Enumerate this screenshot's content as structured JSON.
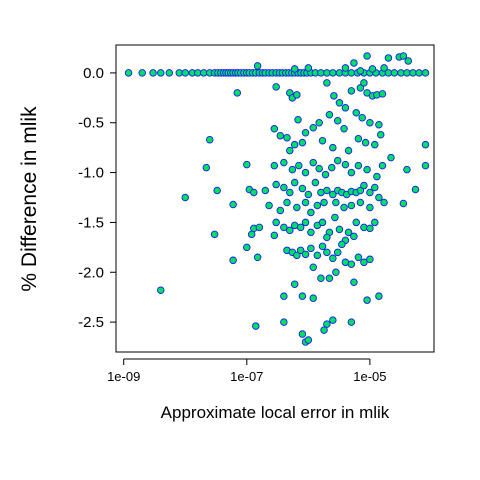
{
  "chart_data": {
    "type": "scatter",
    "title": "",
    "xlabel": "Approximate local error in mlik",
    "ylabel": "% Difference in mlik",
    "x_scale": "log10",
    "xlim": [
      7.5e-10,
      0.00011
    ],
    "ylim": [
      -2.8,
      0.28
    ],
    "x_ticks": [
      1e-09,
      1e-07,
      1e-05
    ],
    "x_tick_labels": [
      "1e-09",
      "1e-07",
      "1e-05"
    ],
    "y_ticks": [
      0.0,
      -0.5,
      -1.0,
      -1.5,
      -2.0,
      -2.5
    ],
    "y_tick_labels": [
      "0.0",
      "-0.5",
      "-1.0",
      "-1.5",
      "-2.0",
      "-2.5"
    ],
    "grid": false,
    "legend": "none",
    "colors": {
      "marker_fill": "#00e060",
      "marker_edge": "#1a1aff",
      "axis": "#000000"
    },
    "series": [
      {
        "points": [
          [
            1.2e-09,
            0.0
          ],
          [
            2e-09,
            0.0
          ],
          [
            3e-09,
            0.0
          ],
          [
            4e-09,
            0.0
          ],
          [
            5.5e-09,
            0.0
          ],
          [
            8e-09,
            0.0
          ],
          [
            1e-08,
            0.0
          ],
          [
            1.3e-08,
            0.0
          ],
          [
            1.6e-08,
            0.0
          ],
          [
            2e-08,
            0.0
          ],
          [
            2.5e-08,
            0.0
          ],
          [
            3e-08,
            0.0
          ],
          [
            3.4e-08,
            0.0
          ],
          [
            3.8e-08,
            0.0
          ],
          [
            4.2e-08,
            0.0
          ],
          [
            4.6e-08,
            0.0
          ],
          [
            5e-08,
            0.0
          ],
          [
            5.5e-08,
            0.0
          ],
          [
            6e-08,
            0.0
          ],
          [
            6.6e-08,
            0.0
          ],
          [
            7.2e-08,
            0.0
          ],
          [
            8e-08,
            0.0
          ],
          [
            9e-08,
            0.0
          ],
          [
            1e-07,
            0.0
          ],
          [
            1.1e-07,
            0.0
          ],
          [
            1.25e-07,
            0.0
          ],
          [
            1.4e-07,
            0.0
          ],
          [
            1.6e-07,
            0.0
          ],
          [
            1.8e-07,
            0.0
          ],
          [
            2e-07,
            0.0
          ],
          [
            2.3e-07,
            0.0
          ],
          [
            2.6e-07,
            0.0
          ],
          [
            3e-07,
            0.0
          ],
          [
            3.4e-07,
            0.0
          ],
          [
            3.8e-07,
            0.0
          ],
          [
            4.3e-07,
            0.0
          ],
          [
            4.8e-07,
            0.0
          ],
          [
            5.4e-07,
            0.0
          ],
          [
            6e-07,
            0.0
          ],
          [
            6.8e-07,
            0.0
          ],
          [
            7.6e-07,
            0.0
          ],
          [
            8.5e-07,
            0.0
          ],
          [
            9.5e-07,
            0.0
          ],
          [
            1.1e-06,
            0.0
          ],
          [
            1.3e-06,
            0.0
          ],
          [
            1.6e-06,
            0.0
          ],
          [
            2e-06,
            0.0
          ],
          [
            2.5e-06,
            0.0
          ],
          [
            3.2e-06,
            0.0
          ],
          [
            4e-06,
            0.0
          ],
          [
            5e-06,
            0.0
          ],
          [
            6.3e-06,
            0.0
          ],
          [
            8e-06,
            0.0
          ],
          [
            1e-05,
            0.0
          ],
          [
            1.25e-05,
            0.0
          ],
          [
            1.6e-05,
            0.0
          ],
          [
            2e-05,
            0.0
          ],
          [
            2.5e-05,
            0.0
          ],
          [
            3.2e-05,
            0.0
          ],
          [
            4e-05,
            0.0
          ],
          [
            5e-05,
            0.0
          ],
          [
            6.3e-05,
            0.0
          ],
          [
            8e-05,
            0.0
          ],
          [
            1.5e-07,
            0.07
          ],
          [
            6e-07,
            0.04
          ],
          [
            1e-06,
            0.05
          ],
          [
            4e-06,
            0.05
          ],
          [
            5.5e-06,
            0.1
          ],
          [
            9e-06,
            0.17
          ],
          [
            1.1e-05,
            0.04
          ],
          [
            2e-05,
            0.15
          ],
          [
            3e-05,
            0.16
          ],
          [
            3.5e-05,
            0.17
          ],
          [
            4.2e-05,
            0.12
          ],
          [
            1.7e-05,
            0.05
          ],
          [
            7e-06,
            0.02
          ],
          [
            7e-08,
            -0.2
          ],
          [
            3e-07,
            -0.14
          ],
          [
            5e-07,
            -0.2
          ],
          [
            5.5e-07,
            -0.25
          ],
          [
            6.5e-07,
            -0.22
          ],
          [
            2e-06,
            -0.1
          ],
          [
            2.6e-06,
            -0.23
          ],
          [
            3.2e-06,
            -0.3
          ],
          [
            5e-06,
            -0.18
          ],
          [
            7e-06,
            -0.15
          ],
          [
            9e-06,
            -0.2
          ],
          [
            1.1e-05,
            -0.23
          ],
          [
            1.3e-05,
            -0.22
          ],
          [
            1.6e-05,
            -0.21
          ],
          [
            8e-06,
            -0.1
          ],
          [
            4e-06,
            -0.35
          ],
          [
            2.2e-06,
            -0.42
          ],
          [
            1.5e-06,
            -0.5
          ],
          [
            1.2e-06,
            -0.55
          ],
          [
            9e-07,
            -0.6
          ],
          [
            3e-06,
            -0.48
          ],
          [
            3.8e-06,
            -0.56
          ],
          [
            6e-06,
            -0.4
          ],
          [
            7.5e-06,
            -0.45
          ],
          [
            1e-05,
            -0.5
          ],
          [
            1.4e-05,
            -0.52
          ],
          [
            6.8e-07,
            -0.47
          ],
          [
            2.8e-07,
            -0.56
          ],
          [
            3.5e-07,
            -0.63
          ],
          [
            4.5e-07,
            -0.65
          ],
          [
            5e-07,
            -0.78
          ],
          [
            6e-07,
            -0.72
          ],
          [
            8e-07,
            -0.7
          ],
          [
            1.7e-06,
            -0.68
          ],
          [
            2.5e-06,
            -0.75
          ],
          [
            4.5e-06,
            -0.78
          ],
          [
            6.5e-06,
            -0.66
          ],
          [
            8.5e-06,
            -0.7
          ],
          [
            1.2e-05,
            -0.72
          ],
          [
            1.5e-05,
            -0.62
          ],
          [
            8e-05,
            -0.72
          ],
          [
            2.5e-08,
            -0.67
          ],
          [
            1e-07,
            -0.92
          ],
          [
            2.2e-08,
            -0.95
          ],
          [
            2.8e-07,
            -0.93
          ],
          [
            4e-07,
            -0.9
          ],
          [
            5.5e-07,
            -0.97
          ],
          [
            7e-07,
            -0.93
          ],
          [
            9e-07,
            -1.0
          ],
          [
            1.2e-06,
            -0.9
          ],
          [
            1.5e-06,
            -0.96
          ],
          [
            1.9e-06,
            -1.02
          ],
          [
            2.4e-06,
            -0.95
          ],
          [
            3e-06,
            -0.88
          ],
          [
            4e-06,
            -0.92
          ],
          [
            5e-06,
            -1.0
          ],
          [
            6.5e-06,
            -0.93
          ],
          [
            9e-06,
            -0.97
          ],
          [
            1.3e-05,
            -1.04
          ],
          [
            1.6e-05,
            -0.93
          ],
          [
            2.2e-05,
            -0.85
          ],
          [
            4e-05,
            -0.97
          ],
          [
            8e-05,
            -0.93
          ],
          [
            2e-07,
            -1.18
          ],
          [
            3e-07,
            -1.12
          ],
          [
            4e-07,
            -1.15
          ],
          [
            5e-07,
            -1.2
          ],
          [
            6e-07,
            -1.1
          ],
          [
            8e-07,
            -1.16
          ],
          [
            1e-06,
            -1.22
          ],
          [
            1.3e-06,
            -1.1
          ],
          [
            1.6e-06,
            -1.2
          ],
          [
            2e-06,
            -1.18
          ],
          [
            2.5e-06,
            -1.22
          ],
          [
            3e-06,
            -1.18
          ],
          [
            3.5e-06,
            -1.2
          ],
          [
            4.2e-06,
            -1.22
          ],
          [
            5e-06,
            -1.19
          ],
          [
            6e-06,
            -1.2
          ],
          [
            7e-06,
            -1.18
          ],
          [
            8e-06,
            -1.13
          ],
          [
            1e-05,
            -1.2
          ],
          [
            1.2e-05,
            -1.15
          ],
          [
            1.4e-05,
            -1.25
          ],
          [
            5.5e-05,
            -1.17
          ],
          [
            3.3e-08,
            -1.18
          ],
          [
            1.1e-07,
            -1.17
          ],
          [
            1.3e-07,
            -1.2
          ],
          [
            6e-08,
            -1.32
          ],
          [
            2.3e-07,
            -1.33
          ],
          [
            3.5e-07,
            -1.38
          ],
          [
            4.5e-07,
            -1.3
          ],
          [
            6.5e-07,
            -1.35
          ],
          [
            9e-07,
            -1.3
          ],
          [
            1.1e-06,
            -1.4
          ],
          [
            1.4e-06,
            -1.33
          ],
          [
            1.8e-06,
            -1.3
          ],
          [
            2.8e-06,
            -1.3
          ],
          [
            3.8e-06,
            -1.35
          ],
          [
            5e-06,
            -1.33
          ],
          [
            7e-06,
            -1.3
          ],
          [
            1e-05,
            -1.35
          ],
          [
            1.7e-05,
            -1.3
          ],
          [
            3.5e-05,
            -1.31
          ],
          [
            1e-08,
            -1.25
          ],
          [
            1.3e-07,
            -1.56
          ],
          [
            1.6e-07,
            -1.55
          ],
          [
            3e-07,
            -1.5
          ],
          [
            4e-07,
            -1.55
          ],
          [
            5e-07,
            -1.58
          ],
          [
            6e-07,
            -1.53
          ],
          [
            7.5e-07,
            -1.55
          ],
          [
            9e-07,
            -1.5
          ],
          [
            1.1e-06,
            -1.6
          ],
          [
            1.4e-06,
            -1.53
          ],
          [
            1.7e-06,
            -1.5
          ],
          [
            2.2e-06,
            -1.6
          ],
          [
            2.7e-06,
            -1.45
          ],
          [
            3.2e-06,
            -1.57
          ],
          [
            4.5e-06,
            -1.6
          ],
          [
            6e-06,
            -1.5
          ],
          [
            8e-06,
            -1.55
          ],
          [
            1e-05,
            -1.56
          ],
          [
            1.2e-05,
            -1.5
          ],
          [
            3e-08,
            -1.62
          ],
          [
            1.2e-07,
            -1.62
          ],
          [
            2.8e-07,
            -1.63
          ],
          [
            2e-06,
            -1.65
          ],
          [
            4e-06,
            -1.68
          ],
          [
            5.5e-06,
            -1.64
          ],
          [
            1e-07,
            -1.75
          ],
          [
            1.5e-07,
            -1.85
          ],
          [
            4.5e-07,
            -1.78
          ],
          [
            5.5e-07,
            -1.8
          ],
          [
            6.5e-07,
            -1.83
          ],
          [
            7.5e-07,
            -1.78
          ],
          [
            9e-07,
            -1.82
          ],
          [
            1.1e-06,
            -1.76
          ],
          [
            1.4e-06,
            -1.83
          ],
          [
            2e-06,
            -1.8
          ],
          [
            2.5e-06,
            -1.86
          ],
          [
            3e-06,
            -1.8
          ],
          [
            4e-06,
            -1.9
          ],
          [
            5e-06,
            -1.92
          ],
          [
            6.5e-06,
            -1.85
          ],
          [
            8e-06,
            -1.9
          ],
          [
            1e-05,
            -1.87
          ],
          [
            1.7e-06,
            -1.74
          ],
          [
            3.5e-06,
            -1.72
          ],
          [
            6e-08,
            -1.88
          ],
          [
            1.2e-06,
            -1.95
          ],
          [
            2.8e-06,
            -2.0
          ],
          [
            6e-07,
            -2.12
          ],
          [
            1.6e-06,
            -2.06
          ],
          [
            2.2e-06,
            -2.06
          ],
          [
            5.5e-06,
            -2.1
          ],
          [
            8e-07,
            -2.24
          ],
          [
            4e-07,
            -2.24
          ],
          [
            1.2e-06,
            -2.26
          ],
          [
            9e-06,
            -2.28
          ],
          [
            1.4e-05,
            -2.24
          ],
          [
            4e-09,
            -2.18
          ],
          [
            1.4e-07,
            -2.54
          ],
          [
            2e-06,
            -2.52
          ],
          [
            2.5e-06,
            -2.48
          ],
          [
            1.8e-06,
            -2.58
          ],
          [
            8e-07,
            -2.62
          ],
          [
            9e-07,
            -2.7
          ],
          [
            1e-06,
            -2.68
          ],
          [
            5e-06,
            -2.5
          ],
          [
            4e-07,
            -2.5
          ]
        ]
      }
    ]
  }
}
